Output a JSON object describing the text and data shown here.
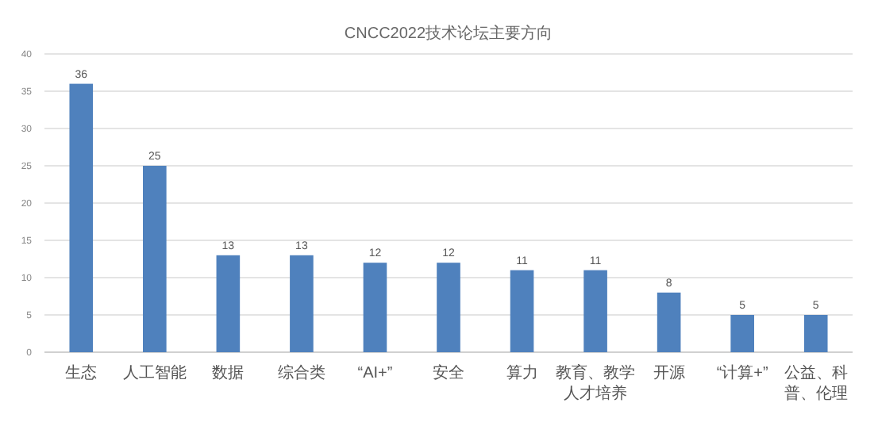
{
  "chart_data": {
    "type": "bar",
    "title": "CNCC2022技术论坛主要方向",
    "categories": [
      "生态",
      "人工智能",
      "数据",
      "综合类",
      "“AI+”",
      "安全",
      "算力",
      "教育、教学人才培养",
      "开源",
      "“计算+”",
      "公益、科普、伦理"
    ],
    "values": [
      36,
      25,
      13,
      13,
      12,
      12,
      11,
      11,
      8,
      5,
      5
    ],
    "color": "#4f81bd",
    "ylim": [
      0,
      40
    ],
    "yticks": [
      0,
      5,
      10,
      15,
      20,
      25,
      30,
      35,
      40
    ],
    "grid": "y",
    "data_labels": true
  }
}
